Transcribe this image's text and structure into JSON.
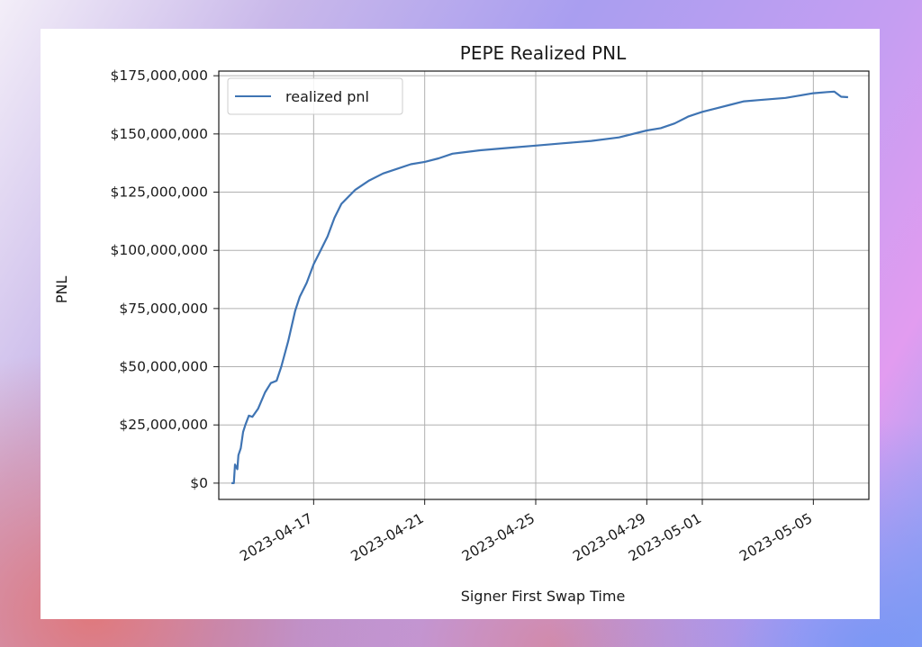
{
  "chart_data": {
    "type": "line",
    "title": "PEPE Realized PNL",
    "xlabel": "Signer First Swap Time",
    "ylabel": "PNL",
    "ylim": [
      -7000000,
      177000000
    ],
    "xlim": [
      "2023-04-13T14:00",
      "2023-05-07T00:00"
    ],
    "grid": true,
    "legend": "top-left",
    "y_ticks": [
      0,
      25000000,
      50000000,
      75000000,
      100000000,
      125000000,
      150000000,
      175000000
    ],
    "y_tick_labels": [
      "$0",
      "$25,000,000",
      "$50,000,000",
      "$75,000,000",
      "$100,000,000",
      "$125,000,000",
      "$150,000,000",
      "$175,000,000"
    ],
    "x_ticks": [
      "2023-04-17",
      "2023-04-21",
      "2023-04-25",
      "2023-04-29",
      "2023-05-01",
      "2023-05-05"
    ],
    "x_tick_labels": [
      "2023-04-17",
      "2023-04-21",
      "2023-04-25",
      "2023-04-29",
      "2023-05-01",
      "2023-05-05"
    ],
    "series": [
      {
        "name": "realized pnl",
        "color": "#3f74b3",
        "x": [
          "2023-04-14T01:00",
          "2023-04-14T03:00",
          "2023-04-14T04:00",
          "2023-04-14T06:00",
          "2023-04-14T07:00",
          "2023-04-14T09:00",
          "2023-04-14T11:00",
          "2023-04-14T13:00",
          "2023-04-14T16:00",
          "2023-04-14T19:00",
          "2023-04-15T00:00",
          "2023-04-15T06:00",
          "2023-04-15T11:00",
          "2023-04-15T16:00",
          "2023-04-15T20:00",
          "2023-04-16T02:00",
          "2023-04-16T08:00",
          "2023-04-16T12:00",
          "2023-04-16T18:00",
          "2023-04-17T00:00",
          "2023-04-17T06:00",
          "2023-04-17T12:00",
          "2023-04-17T18:00",
          "2023-04-18T00:00",
          "2023-04-18T12:00",
          "2023-04-19T00:00",
          "2023-04-19T12:00",
          "2023-04-20T00:00",
          "2023-04-20T12:00",
          "2023-04-21T00:00",
          "2023-04-21T12:00",
          "2023-04-22T00:00",
          "2023-04-23T00:00",
          "2023-04-24T00:00",
          "2023-04-25T00:00",
          "2023-04-26T00:00",
          "2023-04-27T00:00",
          "2023-04-28T00:00",
          "2023-04-29T00:00",
          "2023-04-29T12:00",
          "2023-04-30T00:00",
          "2023-04-30T12:00",
          "2023-05-01T00:00",
          "2023-05-01T12:00",
          "2023-05-02T00:00",
          "2023-05-02T12:00",
          "2023-05-03T00:00",
          "2023-05-04T00:00",
          "2023-05-04T12:00",
          "2023-05-05T00:00",
          "2023-05-05T12:00",
          "2023-05-05T18:00",
          "2023-05-06T00:00",
          "2023-05-06T06:00"
        ],
        "values": [
          0,
          0,
          8000000,
          6000000,
          12000000,
          15000000,
          22000000,
          25000000,
          29000000,
          28500000,
          32000000,
          39000000,
          43000000,
          44000000,
          50000000,
          61000000,
          74000000,
          80000000,
          86000000,
          94000000,
          100000000,
          106000000,
          114000000,
          120000000,
          126000000,
          130000000,
          133000000,
          135000000,
          137000000,
          138000000,
          139500000,
          141500000,
          143000000,
          144000000,
          145000000,
          146000000,
          147000000,
          148500000,
          151500000,
          152500000,
          154500000,
          157500000,
          159500000,
          161000000,
          162500000,
          164000000,
          164500000,
          165500000,
          166500000,
          167500000,
          168000000,
          168200000,
          166000000,
          165800000
        ]
      }
    ]
  }
}
